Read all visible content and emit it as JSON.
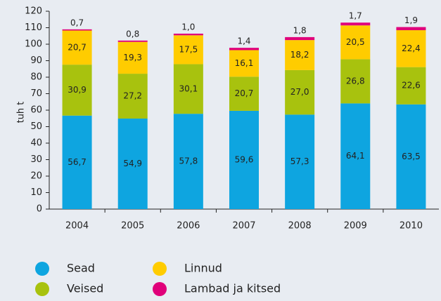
{
  "chart_data": {
    "type": "stacked_bar",
    "y_label": "tuh t",
    "categories": [
      "2004",
      "2005",
      "2006",
      "2007",
      "2008",
      "2009",
      "2010"
    ],
    "series": [
      {
        "name": "Sead",
        "color": "#0ea5e0",
        "values": [
          56.7,
          54.9,
          57.8,
          59.6,
          57.3,
          64.1,
          63.5
        ],
        "value_labels": [
          "56,7",
          "54,9",
          "57,8",
          "59,6",
          "57,3",
          "64,1",
          "63,5"
        ]
      },
      {
        "name": "Veised",
        "color": "#a8c20e",
        "values": [
          30.9,
          27.2,
          30.1,
          20.7,
          27.0,
          26.8,
          22.6
        ],
        "value_labels": [
          "30,9",
          "27,2",
          "30,1",
          "20,7",
          "27,0",
          "26,8",
          "22,6"
        ]
      },
      {
        "name": "Linnud",
        "color": "#ffcc00",
        "values": [
          20.7,
          19.3,
          17.5,
          16.1,
          18.2,
          20.5,
          22.4
        ],
        "value_labels": [
          "20,7",
          "19,3",
          "17,5",
          "16,1",
          "18,2",
          "20,5",
          "22,4"
        ]
      },
      {
        "name": "Lambad ja kitsed",
        "color": "#e0007a",
        "values": [
          0.7,
          0.8,
          1.0,
          1.4,
          1.8,
          1.7,
          1.9
        ],
        "value_labels": [
          "0,7",
          "0,8",
          "1,0",
          "1,4",
          "1,8",
          "1,7",
          "1,9"
        ]
      }
    ],
    "ylim": [
      0,
      120
    ],
    "yticks": [
      0,
      10,
      20,
      30,
      40,
      50,
      60,
      70,
      80,
      90,
      100,
      110,
      120
    ]
  }
}
